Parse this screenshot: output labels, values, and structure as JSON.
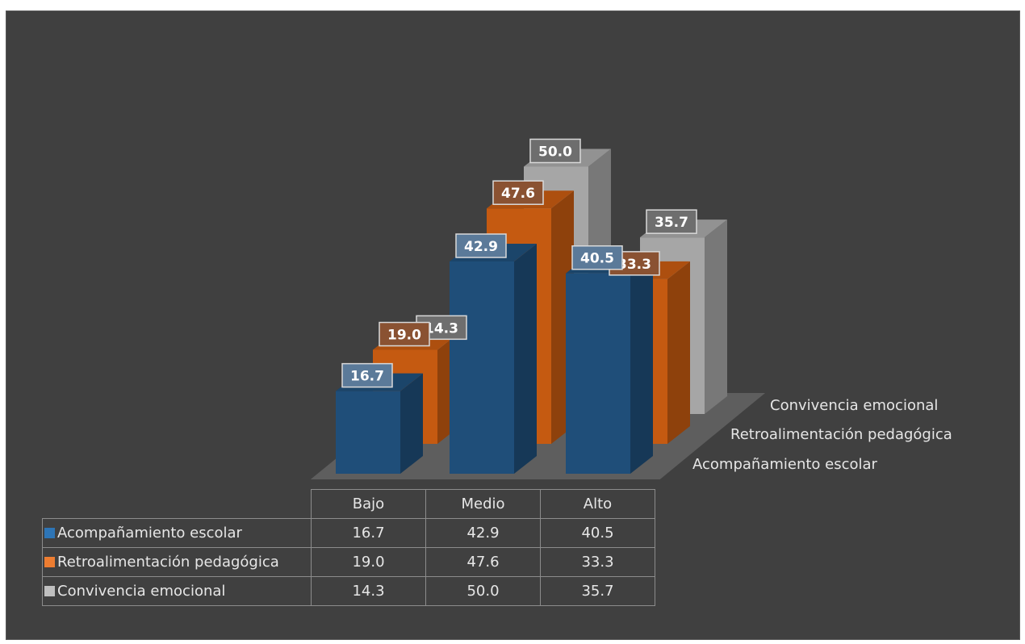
{
  "chart_data": {
    "type": "bar",
    "categories": [
      "Bajo",
      "Medio",
      "Alto"
    ],
    "series": [
      {
        "name": "Acompañamiento escolar",
        "values": [
          16.7,
          42.9,
          40.5
        ],
        "color": "#1f4e79"
      },
      {
        "name": "Retroalimentación pedagógica",
        "values": [
          19.0,
          47.6,
          33.3
        ],
        "color": "#c55a11"
      },
      {
        "name": "Convivencia emocional",
        "values": [
          14.3,
          50.0,
          35.7
        ],
        "color": "#a6a6a6"
      }
    ],
    "value_format": "one-decimal",
    "ylim": [
      0,
      60
    ],
    "data_labels": true,
    "data_table": true,
    "projection": "3d-column",
    "grid": false
  }
}
